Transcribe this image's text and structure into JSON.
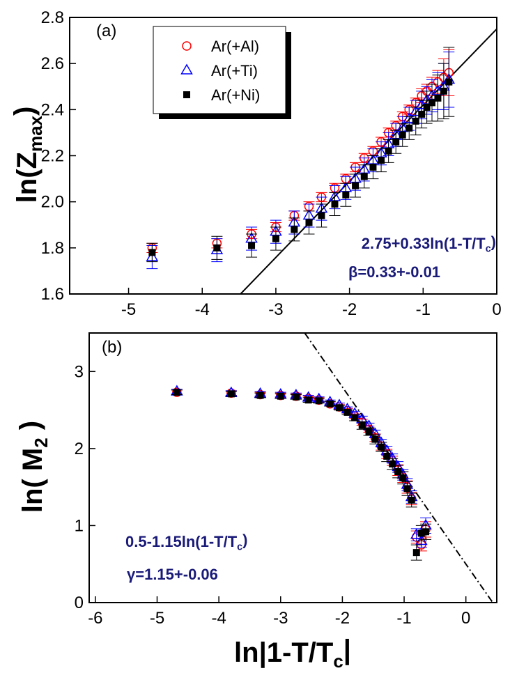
{
  "chart_data": [
    {
      "type": "scatter",
      "panel_label": "(a)",
      "y_label": [
        "ln(Z",
        "max",
        ")"
      ],
      "xlim": [
        -5.8,
        0
      ],
      "ylim": [
        1.6,
        2.8
      ],
      "xticks": [
        -5,
        -4,
        -3,
        -2,
        -1,
        0
      ],
      "yticks": [
        1.6,
        1.8,
        {
          "value": 2,
          "label": "2.0"
        },
        2.2,
        2.4,
        2.6,
        2.8
      ],
      "x": [
        -4.68,
        -3.8,
        -3.33,
        -3.0,
        -2.75,
        -2.55,
        -2.38,
        -2.2,
        -2.05,
        -1.92,
        -1.8,
        -1.68,
        -1.57,
        -1.47,
        -1.37,
        -1.28,
        -1.19,
        -1.1,
        -1.02,
        -0.95,
        -0.88,
        -0.8,
        -0.72,
        -0.65
      ],
      "series": [
        {
          "name": "Ar(+Al)",
          "color": "#ff0000",
          "marker": "circle",
          "values": [
            1.8,
            1.82,
            1.86,
            1.89,
            1.94,
            1.98,
            2.02,
            2.06,
            2.1,
            2.15,
            2.19,
            2.22,
            2.26,
            2.3,
            2.33,
            2.37,
            2.4,
            2.43,
            2.46,
            2.48,
            2.5,
            2.52,
            2.54,
            2.56
          ],
          "errors": [
            0.02,
            0.02,
            0.02,
            0.02,
            0.02,
            0.02,
            0.02,
            0.02,
            0.02,
            0.02,
            0.02,
            0.02,
            0.02,
            0.02,
            0.02,
            0.02,
            0.02,
            0.02,
            0.03,
            0.03,
            0.04,
            0.05,
            0.08,
            0.1
          ]
        },
        {
          "name": "Ar(+Ti)",
          "color": "#0000ff",
          "marker": "triangle",
          "values": [
            1.76,
            1.79,
            1.84,
            1.87,
            1.91,
            1.94,
            1.97,
            2.02,
            2.06,
            2.1,
            2.14,
            2.18,
            2.21,
            2.25,
            2.29,
            2.32,
            2.36,
            2.39,
            2.42,
            2.44,
            2.46,
            2.48,
            2.5,
            2.53
          ],
          "errors": [
            0.05,
            0.05,
            0.05,
            0.05,
            0.05,
            0.05,
            0.05,
            0.05,
            0.05,
            0.05,
            0.05,
            0.05,
            0.05,
            0.05,
            0.05,
            0.05,
            0.05,
            0.05,
            0.06,
            0.06,
            0.07,
            0.08,
            0.1,
            0.12
          ]
        },
        {
          "name": "Ar(+Ni)",
          "color": "#000000",
          "marker": "square",
          "values": [
            1.78,
            1.8,
            1.81,
            1.84,
            1.88,
            1.91,
            1.94,
            1.99,
            2.03,
            2.07,
            2.11,
            2.15,
            2.18,
            2.22,
            2.26,
            2.29,
            2.32,
            2.35,
            2.38,
            2.41,
            2.43,
            2.45,
            2.48,
            2.52
          ],
          "errors": [
            0.04,
            0.05,
            0.05,
            0.05,
            0.05,
            0.05,
            0.05,
            0.05,
            0.05,
            0.05,
            0.05,
            0.05,
            0.05,
            0.05,
            0.05,
            0.05,
            0.05,
            0.06,
            0.06,
            0.07,
            0.08,
            0.1,
            0.12,
            0.15
          ]
        }
      ],
      "fit": {
        "x": [
          -3.48,
          0
        ],
        "values": [
          1.6,
          2.75
        ],
        "style": "solid"
      },
      "annotations": [
        [
          "2.75+0.33ln(1-T/T",
          "c",
          ")"
        ],
        [
          "β=0.33+-0.01"
        ]
      ]
    },
    {
      "type": "scatter",
      "panel_label": "(b)",
      "x_label": [
        "ln|1-T/T",
        "c",
        "|"
      ],
      "y_label": [
        "ln( M",
        "2",
        " )"
      ],
      "xlim": [
        -6.1,
        0.5
      ],
      "ylim": [
        0,
        3.5
      ],
      "xticks": [
        -6,
        -5,
        -4,
        -3,
        -2,
        -1,
        0
      ],
      "yticks": [
        0,
        1,
        2,
        3
      ],
      "x": [
        -4.68,
        -3.8,
        -3.33,
        -3.0,
        -2.75,
        -2.55,
        -2.38,
        -2.2,
        -2.05,
        -1.92,
        -1.8,
        -1.68,
        -1.57,
        -1.47,
        -1.37,
        -1.28,
        -1.19,
        -1.1,
        -1.02,
        -0.95,
        -0.88,
        -0.8,
        -0.72,
        -0.65
      ],
      "series": [
        {
          "name": "Ar(+Al)",
          "color": "#ff0000",
          "marker": "circle",
          "values": [
            2.73,
            2.72,
            2.7,
            2.69,
            2.68,
            2.65,
            2.63,
            2.58,
            2.54,
            2.49,
            2.42,
            2.34,
            2.25,
            2.14,
            2.03,
            1.93,
            1.84,
            1.72,
            1.63,
            1.5,
            1.35,
            0.85,
            0.75,
            0.95
          ],
          "errors": [
            0.03,
            0.03,
            0.03,
            0.03,
            0.03,
            0.03,
            0.03,
            0.03,
            0.03,
            0.03,
            0.03,
            0.04,
            0.04,
            0.05,
            0.05,
            0.06,
            0.06,
            0.07,
            0.07,
            0.08,
            0.08,
            0.08,
            0.08,
            0.1
          ]
        },
        {
          "name": "Ar(+Ti)",
          "color": "#0000ff",
          "marker": "triangle",
          "values": [
            2.74,
            2.72,
            2.71,
            2.7,
            2.69,
            2.66,
            2.64,
            2.6,
            2.56,
            2.51,
            2.45,
            2.38,
            2.29,
            2.19,
            2.07,
            1.97,
            1.87,
            1.76,
            1.66,
            1.53,
            1.37,
            0.88,
            0.8,
            1.0
          ],
          "errors": [
            0.03,
            0.03,
            0.03,
            0.03,
            0.03,
            0.03,
            0.03,
            0.03,
            0.03,
            0.03,
            0.03,
            0.04,
            0.04,
            0.05,
            0.05,
            0.06,
            0.06,
            0.07,
            0.07,
            0.08,
            0.08,
            0.08,
            0.08,
            0.1
          ]
        },
        {
          "name": "Ar(+Ni)",
          "color": "#000000",
          "marker": "square",
          "values": [
            2.73,
            2.71,
            2.69,
            2.68,
            2.67,
            2.63,
            2.62,
            2.58,
            2.53,
            2.47,
            2.4,
            2.3,
            2.22,
            2.12,
            2.02,
            1.9,
            1.8,
            1.7,
            1.62,
            1.48,
            1.33,
            0.65,
            0.9,
            0.92
          ],
          "errors": [
            0.03,
            0.03,
            0.03,
            0.03,
            0.03,
            0.03,
            0.03,
            0.03,
            0.03,
            0.03,
            0.04,
            0.05,
            0.05,
            0.06,
            0.06,
            0.07,
            0.07,
            0.08,
            0.08,
            0.09,
            0.09,
            0.1,
            0.1,
            0.1
          ]
        }
      ],
      "fit": {
        "x": [
          -2.61,
          0.435
        ],
        "values": [
          3.5,
          0
        ],
        "style": "dashdot"
      },
      "annotations": [
        [
          "0.5-1.15ln(1-T/T",
          "c",
          ")"
        ],
        [
          "γ=1.15+-0.06"
        ]
      ]
    }
  ]
}
